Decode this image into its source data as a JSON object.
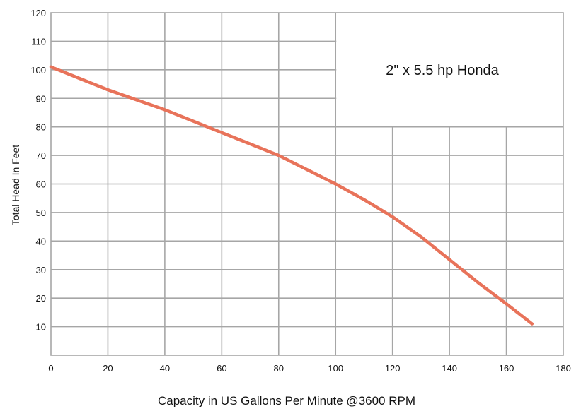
{
  "chart_data": {
    "type": "line",
    "title": "",
    "xlabel": "Capacity in US Gallons Per Minute @3600 RPM",
    "ylabel": "Total Head In Feet",
    "annotation": "2\" x 5.5 hp Honda",
    "xlim": [
      0,
      180
    ],
    "ylim": [
      0,
      120
    ],
    "x_ticks": [
      "0",
      "20",
      "40",
      "60",
      "80",
      "100",
      "120",
      "140",
      "160",
      "180"
    ],
    "y_ticks": [
      "10",
      "20",
      "30",
      "40",
      "50",
      "60",
      "70",
      "80",
      "90",
      "100",
      "110",
      "120"
    ],
    "grid": true,
    "series": [
      {
        "color": "#E8735A",
        "x": [
          0,
          10,
          20,
          30,
          40,
          50,
          60,
          70,
          80,
          90,
          100,
          110,
          120,
          130,
          140,
          150,
          160,
          169
        ],
        "y": [
          101,
          97,
          93,
          89.5,
          86,
          82,
          78,
          74,
          70,
          65,
          60,
          54.5,
          48.5,
          41.5,
          33.5,
          25.5,
          18,
          11
        ]
      }
    ]
  }
}
